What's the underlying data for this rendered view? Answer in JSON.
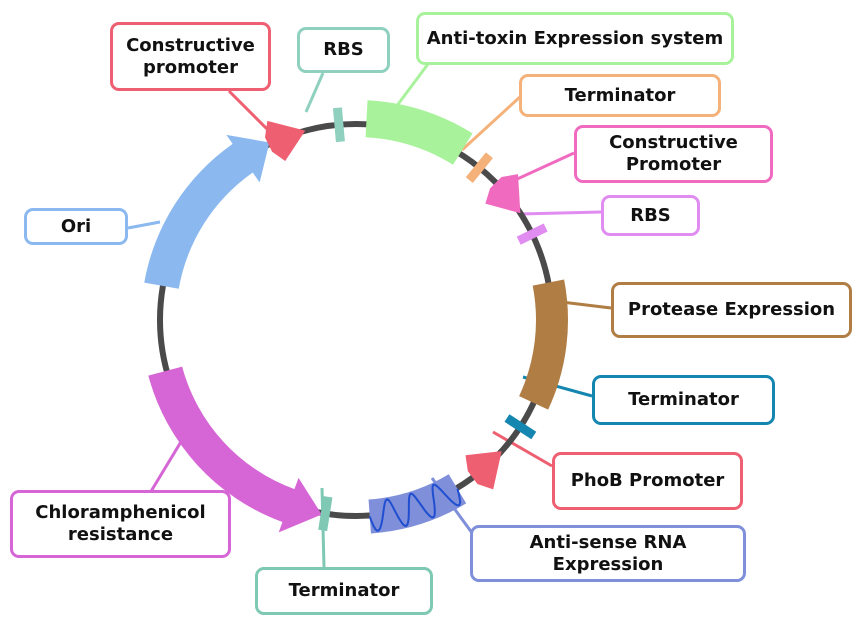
{
  "colors": {
    "backbone": "#4a4a4a",
    "constructive_promoter_1": "#ef5f72",
    "rbs_1": "#8fd0bf",
    "anti_toxin": "#a8f29c",
    "terminator_1": "#f4b27a",
    "constructive_promoter_2": "#f06bc0",
    "rbs_2": "#e08cf0",
    "protease": "#b07d45",
    "terminator_2": "#1486b0",
    "phob_promoter": "#ef5f72",
    "antisense": "#7f8fd9",
    "antisense_wave": "#1f4fd0",
    "terminator_3": "#7ec8b4",
    "chloramphenicol": "#d665d6",
    "ori": "#8ab8ef"
  },
  "labels": {
    "constructive_promoter_1": "Constructive\npromoter",
    "rbs_1": "RBS",
    "anti_toxin": "Anti-toxin Expression system",
    "terminator_1": "Terminator",
    "constructive_promoter_2": "Constructive\nPromoter",
    "rbs_2": "RBS",
    "protease": "Protease Expression",
    "terminator_2": "Terminator",
    "phob_promoter": "PhoB Promoter",
    "antisense": "Anti-sense RNA Expression",
    "terminator_3": "Terminator",
    "chloramphenicol": "Chloramphenicol\nresistance",
    "ori": "Ori"
  }
}
